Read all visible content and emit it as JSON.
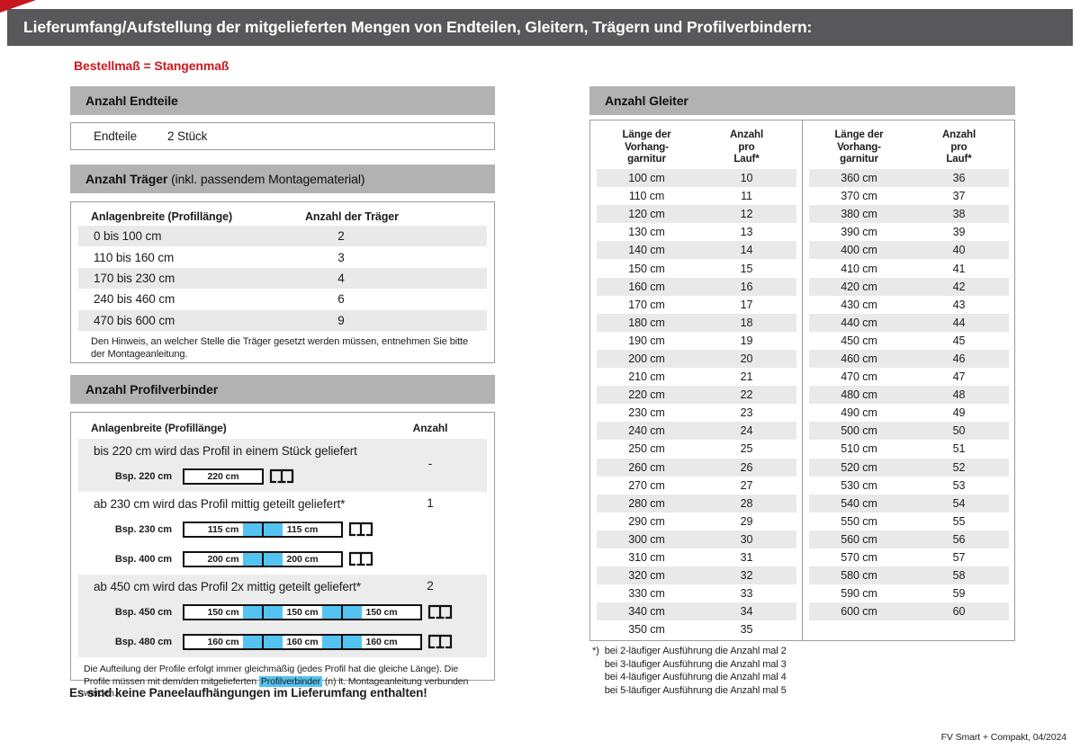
{
  "page": {
    "title": "Lieferumfang/Aufstellung der mitgelieferten Mengen von Endteilen, Gleitern, Trägern und Profilverbindern:",
    "subtitle": "Bestellmaß = Stangenmaß",
    "bottom_note": "Es sind keine Paneelaufhängungen im Lieferumfang enthalten!",
    "footer": "FV Smart + Compakt, 04/2024"
  },
  "colors": {
    "title_bar_gray": "#58585a",
    "section_bar_gray": "#b2b2b2",
    "stripe_gray": "#e9e9e9",
    "accent_red": "#d2151e",
    "highlight_blue": "#55c3f1"
  },
  "endteile": {
    "heading": "Anzahl Endteile",
    "label": "Endteile",
    "value": "2 Stück"
  },
  "traeger": {
    "heading_bold": "Anzahl Träger",
    "heading_rest": " (inkl. passendem Montagematerial)",
    "col1": "Anlagenbreite (Profillänge)",
    "col2": "Anzahl der Träger",
    "rows": [
      {
        "range": "0 bis 100 cm",
        "count": "2"
      },
      {
        "range": "110 bis 160 cm",
        "count": "3"
      },
      {
        "range": "170 bis 230 cm",
        "count": "4"
      },
      {
        "range": "240 bis 460 cm",
        "count": "6"
      },
      {
        "range": "470 bis 600 cm",
        "count": "9"
      }
    ],
    "note": "Den Hinweis, an welcher Stelle die Träger gesetzt werden müssen, entnehmen Sie bitte der Montageanleitung."
  },
  "profilverbinder": {
    "heading": "Anzahl Profilverbinder",
    "col1": "Anlagenbreite (Profillänge)",
    "col2": "Anzahl",
    "sections": [
      {
        "text": "bis 220 cm wird das Profil in einem Stück geliefert",
        "count": "-",
        "examples": [
          {
            "label": "Bsp. 220 cm",
            "segments": [
              "220 cm"
            ]
          }
        ]
      },
      {
        "text": "ab 230 cm wird das Profil mittig geteilt geliefert*",
        "count": "1",
        "examples": [
          {
            "label": "Bsp. 230 cm",
            "segments": [
              "115 cm",
              "115 cm"
            ]
          },
          {
            "label": "Bsp. 400 cm",
            "segments": [
              "200 cm",
              "200 cm"
            ]
          }
        ]
      },
      {
        "text": "ab 450 cm wird das Profil 2x mittig geteilt geliefert*",
        "count": "2",
        "examples": [
          {
            "label": "Bsp. 450 cm",
            "segments": [
              "150 cm",
              "150 cm",
              "150 cm"
            ]
          },
          {
            "label": "Bsp. 480 cm",
            "segments": [
              "160 cm",
              "160 cm",
              "160 cm"
            ]
          }
        ]
      }
    ],
    "note_part1": "Die Aufteilung der Profile erfolgt immer gleichmäßig (jedes Profil hat die gleiche Länge). Die Profile müssen mit dem/den mitgelieferten ",
    "note_highlight": "Profilverbinder",
    "note_part2": " (n) lt. Montageanleitung verbunden werden."
  },
  "gleiter": {
    "heading": "Anzahl Gleiter",
    "col1_lines": [
      "Länge der",
      "Vorhang-",
      "garnitur"
    ],
    "col2_lines": [
      "Anzahl",
      "pro",
      "Lauf*"
    ],
    "left_rows": [
      {
        "len": "100 cm",
        "count": "10"
      },
      {
        "len": "110 cm",
        "count": "11"
      },
      {
        "len": "120 cm",
        "count": "12"
      },
      {
        "len": "130 cm",
        "count": "13"
      },
      {
        "len": "140 cm",
        "count": "14"
      },
      {
        "len": "150 cm",
        "count": "15"
      },
      {
        "len": "160 cm",
        "count": "16"
      },
      {
        "len": "170 cm",
        "count": "17"
      },
      {
        "len": "180 cm",
        "count": "18"
      },
      {
        "len": "190 cm",
        "count": "19"
      },
      {
        "len": "200 cm",
        "count": "20"
      },
      {
        "len": "210 cm",
        "count": "21"
      },
      {
        "len": "220 cm",
        "count": "22"
      },
      {
        "len": "230 cm",
        "count": "23"
      },
      {
        "len": "240 cm",
        "count": "24"
      },
      {
        "len": "250 cm",
        "count": "25"
      },
      {
        "len": "260 cm",
        "count": "26"
      },
      {
        "len": "270 cm",
        "count": "27"
      },
      {
        "len": "280 cm",
        "count": "28"
      },
      {
        "len": "290 cm",
        "count": "29"
      },
      {
        "len": "300 cm",
        "count": "30"
      },
      {
        "len": "310 cm",
        "count": "31"
      },
      {
        "len": "320 cm",
        "count": "32"
      },
      {
        "len": "330 cm",
        "count": "33"
      },
      {
        "len": "340 cm",
        "count": "34"
      },
      {
        "len": "350 cm",
        "count": "35"
      }
    ],
    "right_rows": [
      {
        "len": "360 cm",
        "count": "36"
      },
      {
        "len": "370 cm",
        "count": "37"
      },
      {
        "len": "380 cm",
        "count": "38"
      },
      {
        "len": "390 cm",
        "count": "39"
      },
      {
        "len": "400 cm",
        "count": "40"
      },
      {
        "len": "410 cm",
        "count": "41"
      },
      {
        "len": "420 cm",
        "count": "42"
      },
      {
        "len": "430 cm",
        "count": "43"
      },
      {
        "len": "440 cm",
        "count": "44"
      },
      {
        "len": "450 cm",
        "count": "45"
      },
      {
        "len": "460 cm",
        "count": "46"
      },
      {
        "len": "470 cm",
        "count": "47"
      },
      {
        "len": "480 cm",
        "count": "48"
      },
      {
        "len": "490 cm",
        "count": "49"
      },
      {
        "len": "500 cm",
        "count": "50"
      },
      {
        "len": "510 cm",
        "count": "51"
      },
      {
        "len": "520 cm",
        "count": "52"
      },
      {
        "len": "530 cm",
        "count": "53"
      },
      {
        "len": "540 cm",
        "count": "54"
      },
      {
        "len": "550 cm",
        "count": "55"
      },
      {
        "len": "560 cm",
        "count": "56"
      },
      {
        "len": "570 cm",
        "count": "57"
      },
      {
        "len": "580 cm",
        "count": "58"
      },
      {
        "len": "590 cm",
        "count": "59"
      },
      {
        "len": "600 cm",
        "count": "60"
      }
    ],
    "footnote_marker": "*)",
    "footnotes": [
      "bei 2-läufiger Ausführung die Anzahl mal 2",
      "bei 3-läufiger Ausführung die Anzahl mal 3",
      "bei 4-läufiger Ausführung die Anzahl mal 4",
      "bei 5-läufiger Ausführung die Anzahl mal 5"
    ]
  }
}
